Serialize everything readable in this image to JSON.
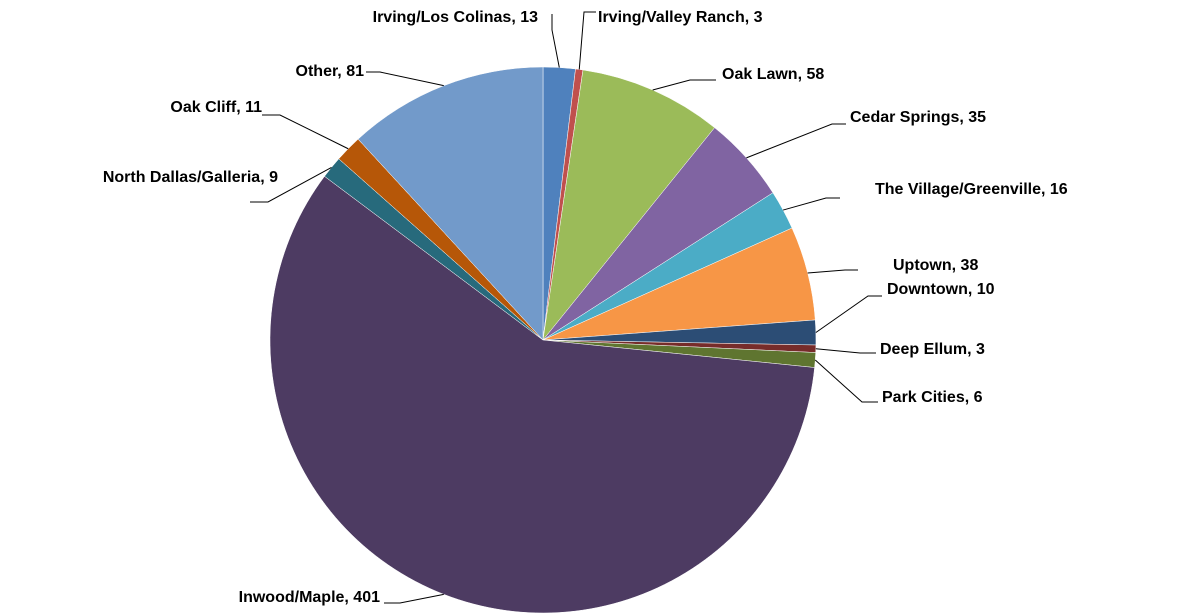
{
  "chart_data": {
    "type": "pie",
    "values": [
      13,
      3,
      58,
      35,
      16,
      38,
      10,
      3,
      6,
      401,
      9,
      11,
      81
    ],
    "value_labels": [
      "Irving/Los Colinas, 13",
      "Irving/Valley Ranch, 3",
      "Oak Lawn, 58",
      "Cedar Springs, 35",
      "The Village/Greenville, 16",
      "Uptown, 38",
      "Downtown, 10",
      "Deep Ellum, 3",
      "Park Cities, 6",
      "Inwood/Maple, 401",
      "North Dallas/Galleria, 9",
      "Oak Cliff, 11",
      "Other, 81"
    ],
    "colors": [
      "#4f81bd",
      "#c0504d",
      "#9bbb59",
      "#8064a2",
      "#4bacc6",
      "#f79646",
      "#2c4d75",
      "#772c2a",
      "#5f7530",
      "#4d3b62",
      "#276a7c",
      "#b65708",
      "#729aca"
    ]
  }
}
